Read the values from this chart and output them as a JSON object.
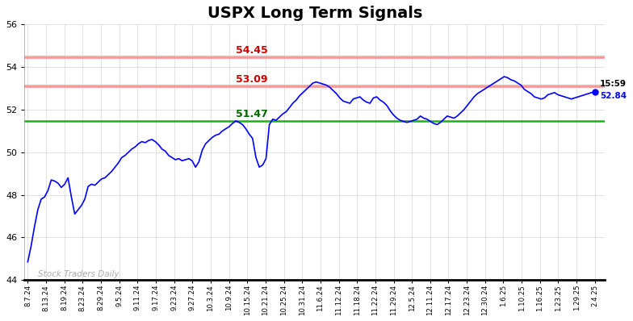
{
  "title": "USPX Long Term Signals",
  "title_fontsize": 14,
  "title_fontweight": "bold",
  "line_color": "blue",
  "line_width": 1.2,
  "background_color": "#ffffff",
  "grid_color": "#cccccc",
  "ylim": [
    44,
    56
  ],
  "yticks": [
    44,
    46,
    48,
    50,
    52,
    54,
    56
  ],
  "red_line_1": 54.45,
  "red_line_2": 53.09,
  "green_line": 51.47,
  "annotation_54_45": "54.45",
  "annotation_53_09": "53.09",
  "annotation_51_47": "51.47",
  "annotation_last_price": "52.84",
  "annotation_last_time": "15:59",
  "watermark": "Stock Traders Daily",
  "x_labels": [
    "8.7.24",
    "8.13.24",
    "8.19.24",
    "8.23.24",
    "8.29.24",
    "9.5.24",
    "9.11.24",
    "9.17.24",
    "9.23.24",
    "9.27.24",
    "10.3.24",
    "10.9.24",
    "10.15.24",
    "10.21.24",
    "10.25.24",
    "10.31.24",
    "11.6.24",
    "11.12.24",
    "11.18.24",
    "11.22.24",
    "11.29.24",
    "12.5.24",
    "12.11.24",
    "12.17.24",
    "12.23.24",
    "12.30.24",
    "1.6.25",
    "1.10.25",
    "1.16.25",
    "1.23.25",
    "1.29.25",
    "2.4.25"
  ],
  "price_data": [
    44.85,
    45.6,
    46.5,
    47.3,
    47.8,
    47.9,
    48.2,
    48.7,
    48.65,
    48.55,
    48.35,
    48.5,
    48.8,
    47.9,
    47.1,
    47.3,
    47.5,
    47.8,
    48.4,
    48.5,
    48.45,
    48.6,
    48.75,
    48.8,
    48.95,
    49.1,
    49.3,
    49.5,
    49.75,
    49.85,
    50.0,
    50.15,
    50.25,
    50.4,
    50.5,
    50.45,
    50.55,
    50.6,
    50.5,
    50.35,
    50.15,
    50.05,
    49.85,
    49.75,
    49.65,
    49.7,
    49.6,
    49.65,
    49.7,
    49.6,
    49.3,
    49.55,
    50.1,
    50.4,
    50.55,
    50.7,
    50.8,
    50.85,
    51.0,
    51.1,
    51.2,
    51.35,
    51.47,
    51.4,
    51.3,
    51.1,
    50.85,
    50.65,
    49.75,
    49.3,
    49.4,
    49.7,
    51.3,
    51.55,
    51.5,
    51.65,
    51.8,
    51.9,
    52.1,
    52.3,
    52.45,
    52.65,
    52.8,
    52.95,
    53.1,
    53.25,
    53.3,
    53.25,
    53.2,
    53.15,
    53.05,
    52.9,
    52.75,
    52.55,
    52.4,
    52.35,
    52.3,
    52.5,
    52.55,
    52.6,
    52.45,
    52.35,
    52.3,
    52.55,
    52.6,
    52.45,
    52.35,
    52.2,
    51.95,
    51.75,
    51.6,
    51.5,
    51.45,
    51.4,
    51.45,
    51.5,
    51.55,
    51.7,
    51.6,
    51.55,
    51.45,
    51.35,
    51.3,
    51.4,
    51.55,
    51.7,
    51.65,
    51.6,
    51.7,
    51.85,
    52.0,
    52.2,
    52.4,
    52.6,
    52.75,
    52.85,
    52.95,
    53.05,
    53.15,
    53.25,
    53.35,
    53.45,
    53.55,
    53.5,
    53.4,
    53.35,
    53.25,
    53.15,
    52.95,
    52.85,
    52.75,
    52.6,
    52.55,
    52.5,
    52.55,
    52.7,
    52.75,
    52.8,
    52.7,
    52.65,
    52.6,
    52.55,
    52.5,
    52.55,
    52.6,
    52.65,
    52.7,
    52.75,
    52.8,
    52.84
  ]
}
